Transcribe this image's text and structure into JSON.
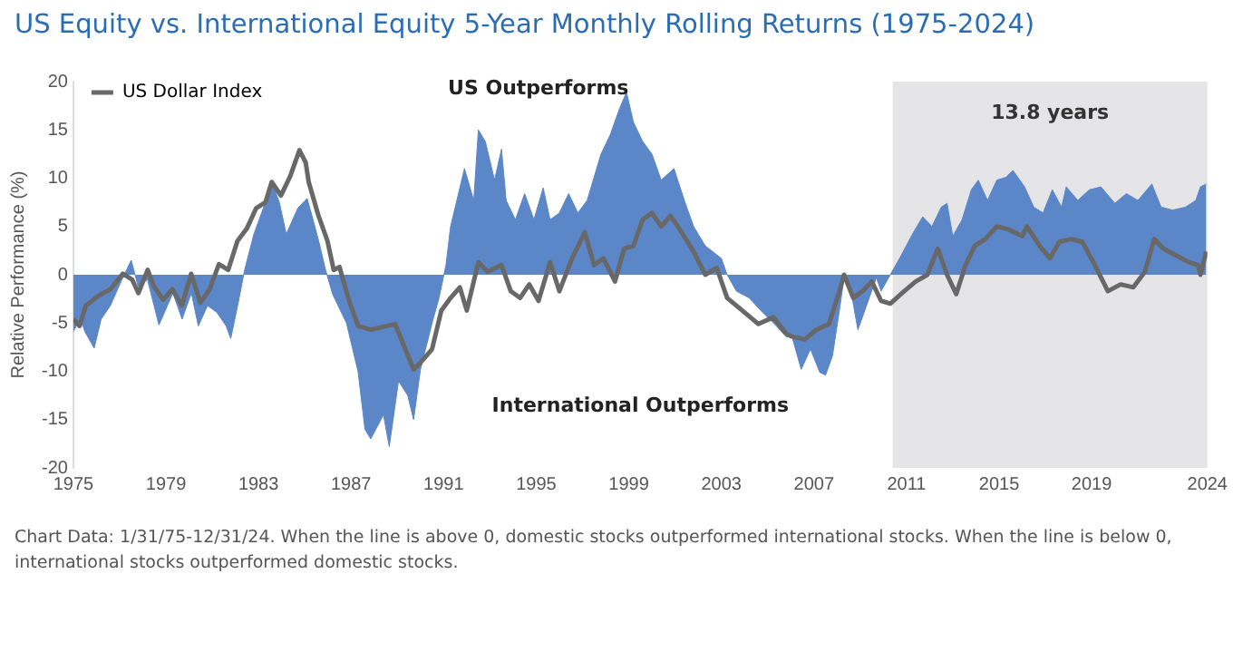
{
  "chart_data": {
    "type": "area",
    "title": "US Equity vs. International Equity 5-Year Monthly Rolling Returns (1975-2024)",
    "ylabel": "Relative Performance (%)",
    "xlim": [
      1975,
      2024
    ],
    "xticks": [
      1975,
      1979,
      1983,
      1987,
      1991,
      1995,
      1999,
      2003,
      2007,
      2011,
      2015,
      2019,
      2024
    ],
    "ylim": [
      -20,
      20
    ],
    "yticks": [
      -20,
      -15,
      -10,
      -5,
      0,
      5,
      10,
      15,
      20
    ],
    "grid": false,
    "legend": "top left",
    "marker": "none",
    "bands": [
      {
        "axis": "x",
        "from": 2010.4,
        "to": 2024,
        "label": "13.8 years",
        "color": "#e5e5e7"
      }
    ],
    "annotations": [
      "US Outperforms",
      "International Outperforms",
      "Chart Data: 1/31/75-12/31/24. When the line is above 0, domestic stocks outperformed international stocks. When the line is below 0, international stocks outperformed domestic stocks."
    ],
    "series": [
      {
        "color": "#5b87c9",
        "x": [
          1975.0,
          1975.3,
          1975.5,
          1975.9,
          1976.2,
          1976.6,
          1977.1,
          1977.5,
          1977.8,
          1978.2,
          1978.7,
          1979.3,
          1979.7,
          1980.1,
          1980.4,
          1980.8,
          1981.2,
          1981.6,
          1981.8,
          1982.1,
          1982.4,
          1982.8,
          1983.3,
          1983.6,
          1983.9,
          1984.2,
          1984.7,
          1985.1,
          1985.3,
          1985.6,
          1985.9,
          1986.2,
          1986.8,
          1987.3,
          1987.6,
          1987.85,
          1988.4,
          1988.65,
          1989.05,
          1989.45,
          1989.7,
          1990.0,
          1990.5,
          1990.8,
          1991.1,
          1991.3,
          1991.9,
          1992.3,
          1992.5,
          1992.8,
          1993.2,
          1993.5,
          1993.7,
          1994.1,
          1994.5,
          1994.9,
          1995.3,
          1995.6,
          1996.0,
          1996.4,
          1996.8,
          1997.2,
          1997.8,
          1998.2,
          1998.6,
          1998.9,
          1999.2,
          1999.6,
          2000.0,
          2000.4,
          2000.95,
          2001.4,
          2001.8,
          2002.3,
          2003.0,
          2003.25,
          2003.65,
          2004.2,
          2004.7,
          2005.25,
          2005.8,
          2006.05,
          2006.45,
          2006.85,
          2007.25,
          2007.5,
          2007.8,
          2008.1,
          2008.3,
          2008.6,
          2008.9,
          2009.3,
          2009.7,
          2009.9,
          2010.3,
          2010.7,
          2011.3,
          2011.7,
          2012.1,
          2012.5,
          2012.75,
          2013.0,
          2013.4,
          2013.8,
          2014.1,
          2014.5,
          2014.9,
          2015.3,
          2015.6,
          2016.1,
          2016.5,
          2016.9,
          2017.3,
          2017.7,
          2017.9,
          2018.4,
          2018.9,
          2019.4,
          2020.0,
          2020.5,
          2021.0,
          2021.6,
          2022.0,
          2022.5,
          2023.05,
          2023.5,
          2023.7,
          2023.95
        ],
        "values": [
          -5.9,
          -4.5,
          -5.9,
          -7.6,
          -4.6,
          -3.2,
          -0.5,
          1.5,
          -1.2,
          -0.5,
          -5.2,
          -1.9,
          -4.6,
          -1.9,
          -5.3,
          -3.2,
          -3.9,
          -5.3,
          -6.6,
          -3.2,
          0.5,
          4.2,
          7.5,
          9.5,
          7.5,
          4.2,
          6.9,
          7.9,
          6.2,
          3.5,
          0.5,
          -2,
          -5,
          -10,
          -16,
          -17,
          -14.5,
          -17.8,
          -11,
          -12.5,
          -15,
          -9.8,
          -5,
          -2.4,
          1,
          5,
          11,
          7.7,
          15,
          13.8,
          9.8,
          13,
          7.7,
          5.7,
          8.4,
          5.7,
          9,
          5.7,
          6.4,
          8.4,
          6.4,
          7.7,
          12.5,
          14.5,
          17.2,
          18.9,
          15.8,
          13.8,
          12.5,
          9.8,
          11,
          7.7,
          5,
          3,
          1.7,
          0,
          -1.7,
          -2.4,
          -3.7,
          -5,
          -6.4,
          -6.4,
          -9.8,
          -7.7,
          -10.1,
          -10.4,
          -8.4,
          -3.7,
          -0.3,
          -1.7,
          -5.7,
          -3,
          -0.3,
          -1.7,
          0,
          1.7,
          4.4,
          6,
          5,
          7,
          7.4,
          4,
          5.7,
          8.8,
          9.8,
          7.7,
          9.8,
          10.1,
          10.8,
          9.1,
          7,
          6.4,
          8.8,
          7,
          9.1,
          7.7,
          8.8,
          9.1,
          7.4,
          8.4,
          7.7,
          9.4,
          7,
          6.7,
          7,
          7.7,
          9.1,
          9.4
        ]
      },
      {
        "type": "line",
        "name": "US Dollar Index",
        "color": "#686868",
        "x": [
          1975.0,
          1975.27,
          1975.54,
          1976.07,
          1976.6,
          1977.14,
          1977.54,
          1977.81,
          1978.21,
          1978.48,
          1978.88,
          1979.28,
          1979.69,
          1980.09,
          1980.49,
          1980.89,
          1981.29,
          1981.69,
          1982.09,
          1982.5,
          1982.9,
          1983.3,
          1983.57,
          1983.97,
          1984.37,
          1984.77,
          1985.04,
          1985.17,
          1985.58,
          1985.98,
          1986.25,
          1986.5,
          1986.9,
          1987.3,
          1987.85,
          1988.9,
          1989.7,
          1990.0,
          1990.5,
          1990.9,
          1991.3,
          1991.7,
          1992.0,
          1992.5,
          1992.9,
          1993.5,
          1993.9,
          1994.3,
          1994.7,
          1995.1,
          1995.6,
          1996.0,
          1996.55,
          1997.1,
          1997.5,
          1997.9,
          1998.4,
          1998.8,
          1999.2,
          1999.6,
          2000.0,
          2000.4,
          2000.8,
          2001.2,
          2001.8,
          2002.3,
          2002.8,
          2003.25,
          2003.9,
          2004.6,
          2005.25,
          2005.8,
          2006.05,
          2006.6,
          2007.1,
          2007.65,
          2008.1,
          2008.3,
          2008.7,
          2009.1,
          2009.5,
          2009.9,
          2010.3,
          2010.9,
          2011.4,
          2011.9,
          2012.35,
          2012.75,
          2013.15,
          2013.55,
          2013.95,
          2014.4,
          2014.9,
          2015.4,
          2016.0,
          2016.2,
          2016.75,
          2017.2,
          2017.6,
          2018.1,
          2018.6,
          2019.2,
          2019.7,
          2020.25,
          2020.8,
          2021.3,
          2021.7,
          2022.1,
          2022.65,
          2023.2,
          2023.6,
          2023.7,
          2023.95
        ],
        "values": [
          -4.6,
          -5.3,
          -3.2,
          -2.2,
          -1.5,
          0.1,
          -0.5,
          -1.9,
          0.5,
          -1.2,
          -2.6,
          -1.5,
          -3.2,
          0.1,
          -2.9,
          -1.5,
          1.1,
          0.5,
          3.5,
          4.8,
          6.9,
          7.5,
          9.6,
          8.2,
          10.2,
          12.9,
          11.6,
          9.6,
          6.2,
          3.5,
          0.5,
          0.8,
          -2.6,
          -5.3,
          -5.7,
          -5.1,
          -9.8,
          -9.1,
          -7.7,
          -3.7,
          -2.4,
          -1.3,
          -3.7,
          1.3,
          0.3,
          1,
          -1.7,
          -2.4,
          -1,
          -2.7,
          1.3,
          -1.7,
          1.7,
          4.4,
          1,
          1.7,
          -0.7,
          2.7,
          3,
          5.7,
          6.4,
          5,
          6.1,
          4.7,
          2.4,
          0,
          0.7,
          -2.4,
          -3.7,
          -5.1,
          -4.4,
          -6.1,
          -6.4,
          -6.7,
          -5.7,
          -5.1,
          -1.7,
          0,
          -2.4,
          -1.7,
          -0.7,
          -2.7,
          -3,
          -1.7,
          -0.7,
          0,
          2.7,
          0,
          -2,
          1,
          3,
          3.7,
          5,
          4.7,
          4,
          5,
          3,
          1.7,
          3.4,
          3.7,
          3.4,
          0.7,
          -1.7,
          -1,
          -1.3,
          0.3,
          3.7,
          2.7,
          2,
          1.3,
          1,
          0,
          2.4
        ]
      }
    ]
  }
}
